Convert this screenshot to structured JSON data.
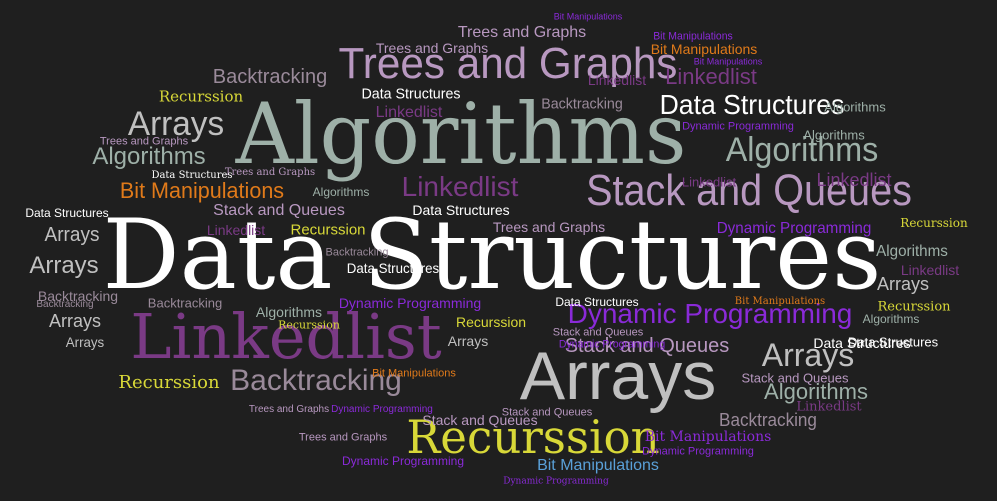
{
  "background_color": "#1f1f1f",
  "palette": {
    "white": "#ffffff",
    "sage": "#9eb0a8",
    "lavender": "#b898c0",
    "purple": "#7a3a85",
    "violet": "#8a2ad8",
    "yellow": "#d8d838",
    "orange": "#e07a1a",
    "gray": "#c0c0c0",
    "taupe": "#9a8a9a",
    "blue": "#5aa0d8"
  },
  "words": [
    {
      "text": "Data Structures",
      "color": "white"
    },
    {
      "text": "Algorithms",
      "color": "sage"
    },
    {
      "text": "Linkedlist",
      "color": "purple"
    },
    {
      "text": "Arrays",
      "color": "gray"
    },
    {
      "text": "Trees and Graphs",
      "color": "lavender"
    },
    {
      "text": "Stack and Queues",
      "color": "lavender"
    },
    {
      "text": "Recurssion",
      "color": "yellow"
    },
    {
      "text": "Dynamic Programming",
      "color": "violet"
    },
    {
      "text": "Data Structures",
      "color": "white"
    },
    {
      "text": "Algorithms",
      "color": "sage"
    },
    {
      "text": "Backtracking",
      "color": "taupe"
    },
    {
      "text": "Arrays",
      "color": "gray"
    },
    {
      "text": "Linkedlist",
      "color": "purple"
    },
    {
      "text": "Backtracking",
      "color": "taupe"
    },
    {
      "text": "Bit Manipulations",
      "color": "orange"
    },
    {
      "text": "Algorithms",
      "color": "sage"
    },
    {
      "text": "Arrays",
      "color": "gray"
    },
    {
      "text": "Stack and Queues",
      "color": "lavender"
    },
    {
      "text": "Linkedlist",
      "color": "purple"
    },
    {
      "text": "Linkedlist",
      "color": "purple"
    },
    {
      "text": "Algorithms",
      "color": "sage"
    },
    {
      "text": "Arrays",
      "color": "gray"
    },
    {
      "text": "Arrays",
      "color": "gray"
    },
    {
      "text": "Trees and Graphs",
      "color": "lavender"
    },
    {
      "text": "Bit Manipulations",
      "color": "blue"
    },
    {
      "text": "Backtracking",
      "color": "taupe"
    },
    {
      "text": "Recurssion",
      "color": "yellow"
    },
    {
      "text": "Recurssion",
      "color": "yellow"
    },
    {
      "text": "Dynamic Programming",
      "color": "violet"
    },
    {
      "text": "Data Structures",
      "color": "white"
    },
    {
      "text": "Data Structures",
      "color": "white"
    },
    {
      "text": "Data Structures",
      "color": "white"
    },
    {
      "text": "Algorithms",
      "color": "sage"
    },
    {
      "text": "Algorithms",
      "color": "sage"
    },
    {
      "text": "Algorithms",
      "color": "sage"
    },
    {
      "text": "Stack and Queues",
      "color": "lavender"
    },
    {
      "text": "Stack and Queues",
      "color": "lavender"
    },
    {
      "text": "Linkedlist",
      "color": "purple"
    },
    {
      "text": "Linkedlist",
      "color": "purple"
    },
    {
      "text": "Linkedlist",
      "color": "purple"
    },
    {
      "text": "Backtracking",
      "color": "taupe"
    },
    {
      "text": "Backtracking",
      "color": "taupe"
    },
    {
      "text": "Backtracking",
      "color": "taupe"
    },
    {
      "text": "Recurssion",
      "color": "yellow"
    },
    {
      "text": "Recurssion",
      "color": "yellow"
    },
    {
      "text": "Recurssion",
      "color": "yellow"
    },
    {
      "text": "Recurssion",
      "color": "yellow"
    },
    {
      "text": "Arrays",
      "color": "gray"
    },
    {
      "text": "Arrays",
      "color": "gray"
    },
    {
      "text": "Arrays",
      "color": "gray"
    },
    {
      "text": "Data Structures",
      "color": "white"
    },
    {
      "text": "Data Structures",
      "color": "white"
    },
    {
      "text": "Data Structures",
      "color": "white"
    },
    {
      "text": "Trees and Graphs",
      "color": "lavender"
    },
    {
      "text": "Trees and Graphs",
      "color": "lavender"
    },
    {
      "text": "Trees and Graphs",
      "color": "lavender"
    },
    {
      "text": "Trees and Graphs",
      "color": "lavender"
    },
    {
      "text": "Trees and Graphs",
      "color": "lavender"
    },
    {
      "text": "Bit Manipulations",
      "color": "orange"
    },
    {
      "text": "Bit Manipulations",
      "color": "orange"
    },
    {
      "text": "Bit Manipulations",
      "color": "violet"
    },
    {
      "text": "Dynamic Programming",
      "color": "violet"
    },
    {
      "text": "Dynamic Programming",
      "color": "violet"
    },
    {
      "text": "Dynamic Programming",
      "color": "violet"
    },
    {
      "text": "Dynamic Programming",
      "color": "violet"
    },
    {
      "text": "Dynamic Programming",
      "color": "violet"
    },
    {
      "text": "Bit Manipulations",
      "color": "violet"
    },
    {
      "text": "Algorithms",
      "color": "sage"
    },
    {
      "text": "Data Structures",
      "color": "white"
    },
    {
      "text": "Linkedlist",
      "color": "purple"
    },
    {
      "text": "Algorithms",
      "color": "sage"
    },
    {
      "text": "Stack and Queues",
      "color": "lavender"
    },
    {
      "text": "Stack and Queues",
      "color": "lavender"
    },
    {
      "text": "Stack and Queues",
      "color": "lavender"
    },
    {
      "text": "Backtracking",
      "color": "taupe"
    },
    {
      "text": "Bit Manipulations",
      "color": "orange"
    },
    {
      "text": "Linkedlist",
      "color": "purple"
    },
    {
      "text": "Arrays",
      "color": "gray"
    },
    {
      "text": "Trees and Graphs",
      "color": "lavender"
    },
    {
      "text": "Bit Manipulations",
      "color": "violet"
    },
    {
      "text": "Algorithms",
      "color": "sage"
    },
    {
      "text": "Recurssion",
      "color": "yellow"
    },
    {
      "text": "Dynamic Programming",
      "color": "violet"
    },
    {
      "text": "Data Structures",
      "color": "white"
    },
    {
      "text": "Backtracking",
      "color": "taupe"
    },
    {
      "text": "Linkedlist",
      "color": "purple"
    },
    {
      "text": "Bit Manipulations",
      "color": "violet"
    },
    {
      "text": "Dynamic Programming",
      "color": "violet"
    }
  ]
}
